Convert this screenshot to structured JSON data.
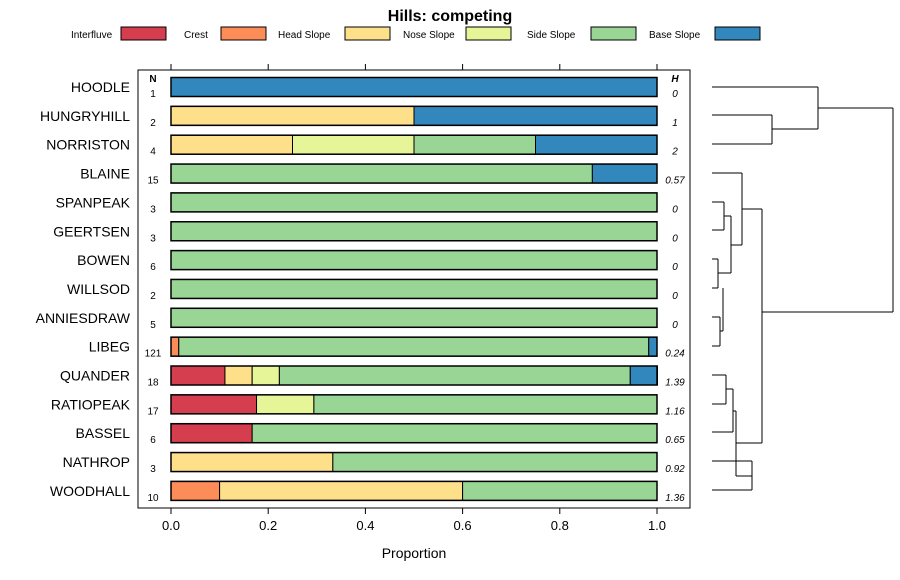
{
  "chart_data": {
    "type": "bar",
    "orientation": "horizontal",
    "stacked": true,
    "title": "Hills: competing",
    "xlabel": "Proportion",
    "ylabel": "",
    "xlim": [
      0,
      1
    ],
    "x_ticks": [
      0,
      0.2,
      0.4,
      0.6,
      0.8,
      1
    ],
    "x_tick_labels": [
      "0.0",
      "0.2",
      "0.4",
      "0.6",
      "0.8",
      "1.0"
    ],
    "n_header": "N",
    "h_header": "H",
    "legend_position": "top",
    "legend": [
      {
        "name": "Interfluve",
        "color": "#d53e4f"
      },
      {
        "name": "Crest",
        "color": "#fc8d59"
      },
      {
        "name": "Head Slope",
        "color": "#fee08b"
      },
      {
        "name": "Nose Slope",
        "color": "#e6f598"
      },
      {
        "name": "Side Slope",
        "color": "#99d594"
      },
      {
        "name": "Base Slope",
        "color": "#3288bd"
      }
    ],
    "categories": [
      "HOODLE",
      "HUNGRYHILL",
      "NORRISTON",
      "BLAINE",
      "SPANPEAK",
      "GEERTSEN",
      "BOWEN",
      "WILLSOD",
      "ANNIESDRAW",
      "LIBEG",
      "QUANDER",
      "RATIOPEAK",
      "BASSEL",
      "NATHROP",
      "WOODHALL"
    ],
    "n": [
      "1",
      "2",
      "4",
      "15",
      "3",
      "3",
      "6",
      "2",
      "5",
      "121",
      "18",
      "17",
      "6",
      "3",
      "10"
    ],
    "h": [
      "0",
      "1",
      "2",
      "0.57",
      "0",
      "0",
      "0",
      "0",
      "0",
      "0.24",
      "1.39",
      "1.16",
      "0.65",
      "0.92",
      "1.36"
    ],
    "series": [
      {
        "name": "Interfluve",
        "values": [
          0,
          0,
          0,
          0,
          0,
          0,
          0,
          0,
          0,
          0,
          0.111,
          0.176,
          0.167,
          0,
          0
        ]
      },
      {
        "name": "Crest",
        "values": [
          0,
          0,
          0,
          0,
          0,
          0,
          0,
          0,
          0,
          0.016,
          0,
          0,
          0,
          0,
          0.1
        ]
      },
      {
        "name": "Head Slope",
        "values": [
          0,
          0.5,
          0.25,
          0,
          0,
          0,
          0,
          0,
          0,
          0,
          0.056,
          0,
          0,
          0.333,
          0.5
        ]
      },
      {
        "name": "Nose Slope",
        "values": [
          0,
          0,
          0.25,
          0,
          0,
          0,
          0,
          0,
          0,
          0,
          0.056,
          0.118,
          0,
          0,
          0
        ]
      },
      {
        "name": "Side Slope",
        "values": [
          0,
          0,
          0.25,
          0.867,
          1,
          1,
          1,
          1,
          1,
          0.967,
          0.722,
          0.706,
          0.833,
          0.667,
          0.4
        ]
      },
      {
        "name": "Base Slope",
        "values": [
          1,
          0.5,
          0.25,
          0.133,
          0,
          0,
          0,
          0,
          0,
          0.017,
          0.056,
          0,
          0,
          0,
          0
        ]
      }
    ],
    "dendrogram": "HOODLE, HUNGRYHILL and NORRISTON form one cluster; the remaining twelve profiles form a second cluster joined at the root."
  }
}
